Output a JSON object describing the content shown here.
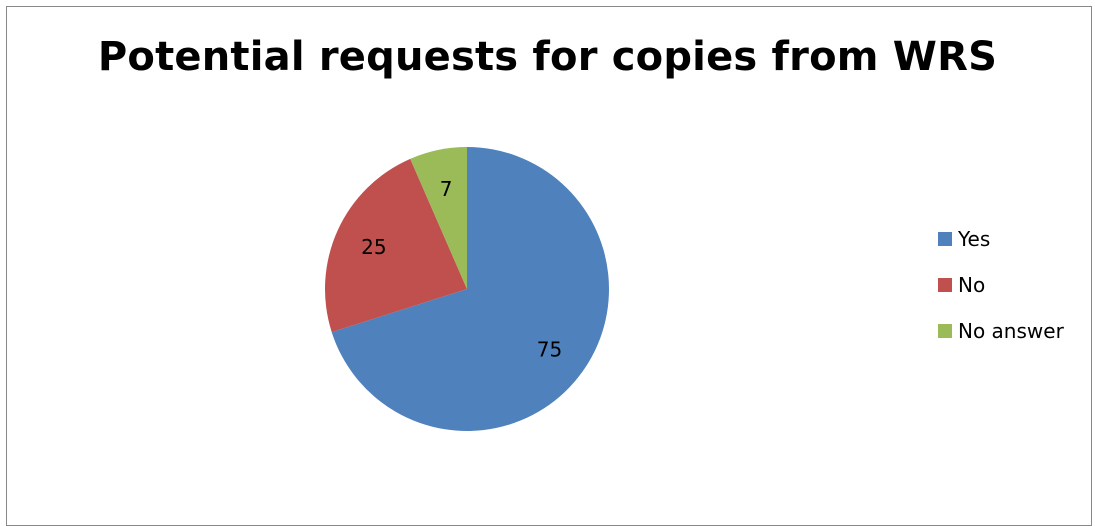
{
  "chart_data": {
    "type": "pie",
    "title": "Potential requests for copies from WRS",
    "slices": [
      {
        "label": "Yes",
        "value": 75,
        "color": "#4F81BD"
      },
      {
        "label": "No",
        "value": 25,
        "color": "#C0504D"
      },
      {
        "label": "No answer",
        "value": 7,
        "color": "#9BBB59"
      }
    ],
    "data_labels": [
      "75",
      "25",
      "7"
    ],
    "legend_placement": "right"
  }
}
